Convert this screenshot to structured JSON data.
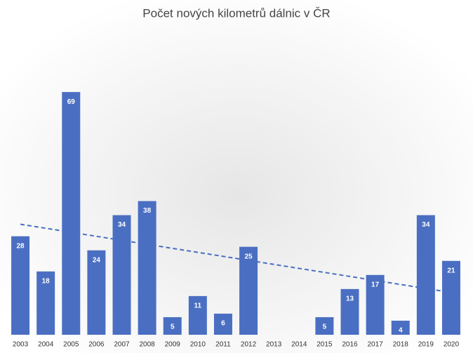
{
  "chart_data": {
    "type": "bar",
    "title": "Počet nových kilometrů dálnic v ČR",
    "categories": [
      "2003",
      "2004",
      "2005",
      "2006",
      "2007",
      "2008",
      "2009",
      "2010",
      "2011",
      "2012",
      "2013",
      "2014",
      "2015",
      "2016",
      "2017",
      "2018",
      "2019",
      "2020"
    ],
    "values": [
      28,
      18,
      69,
      24,
      34,
      38,
      5,
      11,
      6,
      25,
      null,
      null,
      5,
      13,
      17,
      4,
      34,
      21
    ],
    "color": "#4a6fc2",
    "ylim": [
      0,
      80
    ],
    "trendline": "linear",
    "trendline_color": "#4a6fc2"
  }
}
